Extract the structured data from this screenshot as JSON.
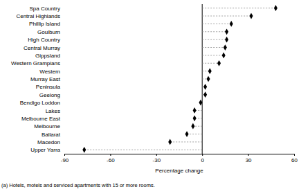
{
  "chart_data": {
    "type": "dot",
    "orientation": "horizontal",
    "categories": [
      "Spa Country",
      "Central Highlands",
      "Phillip Island",
      "Goulburn",
      "High Country",
      "Central Murray",
      "Gippsland",
      "Western Grampians",
      "Western",
      "Murray East",
      "Peninsula",
      "Geelong",
      "Bendigo Loddon",
      "Lakes",
      "Melbourne East",
      "Melbourne",
      "Ballarat",
      "Macedon",
      "Upper Yarra"
    ],
    "values": [
      48,
      32,
      19,
      16,
      16,
      15,
      14,
      11,
      5,
      4,
      2,
      2,
      -1,
      -5,
      -5,
      -6,
      -10,
      -21,
      -77
    ],
    "color": "#000000",
    "marker": "diamond",
    "line_style": "dashed",
    "xlim": [
      -90,
      60
    ],
    "xticks": [
      -90,
      -60,
      -30,
      0,
      30,
      60
    ],
    "xlabel": "Percentage change",
    "annotations": [
      "(a) Hotels, motels and serviced apartments with 15 or more rooms."
    ]
  }
}
